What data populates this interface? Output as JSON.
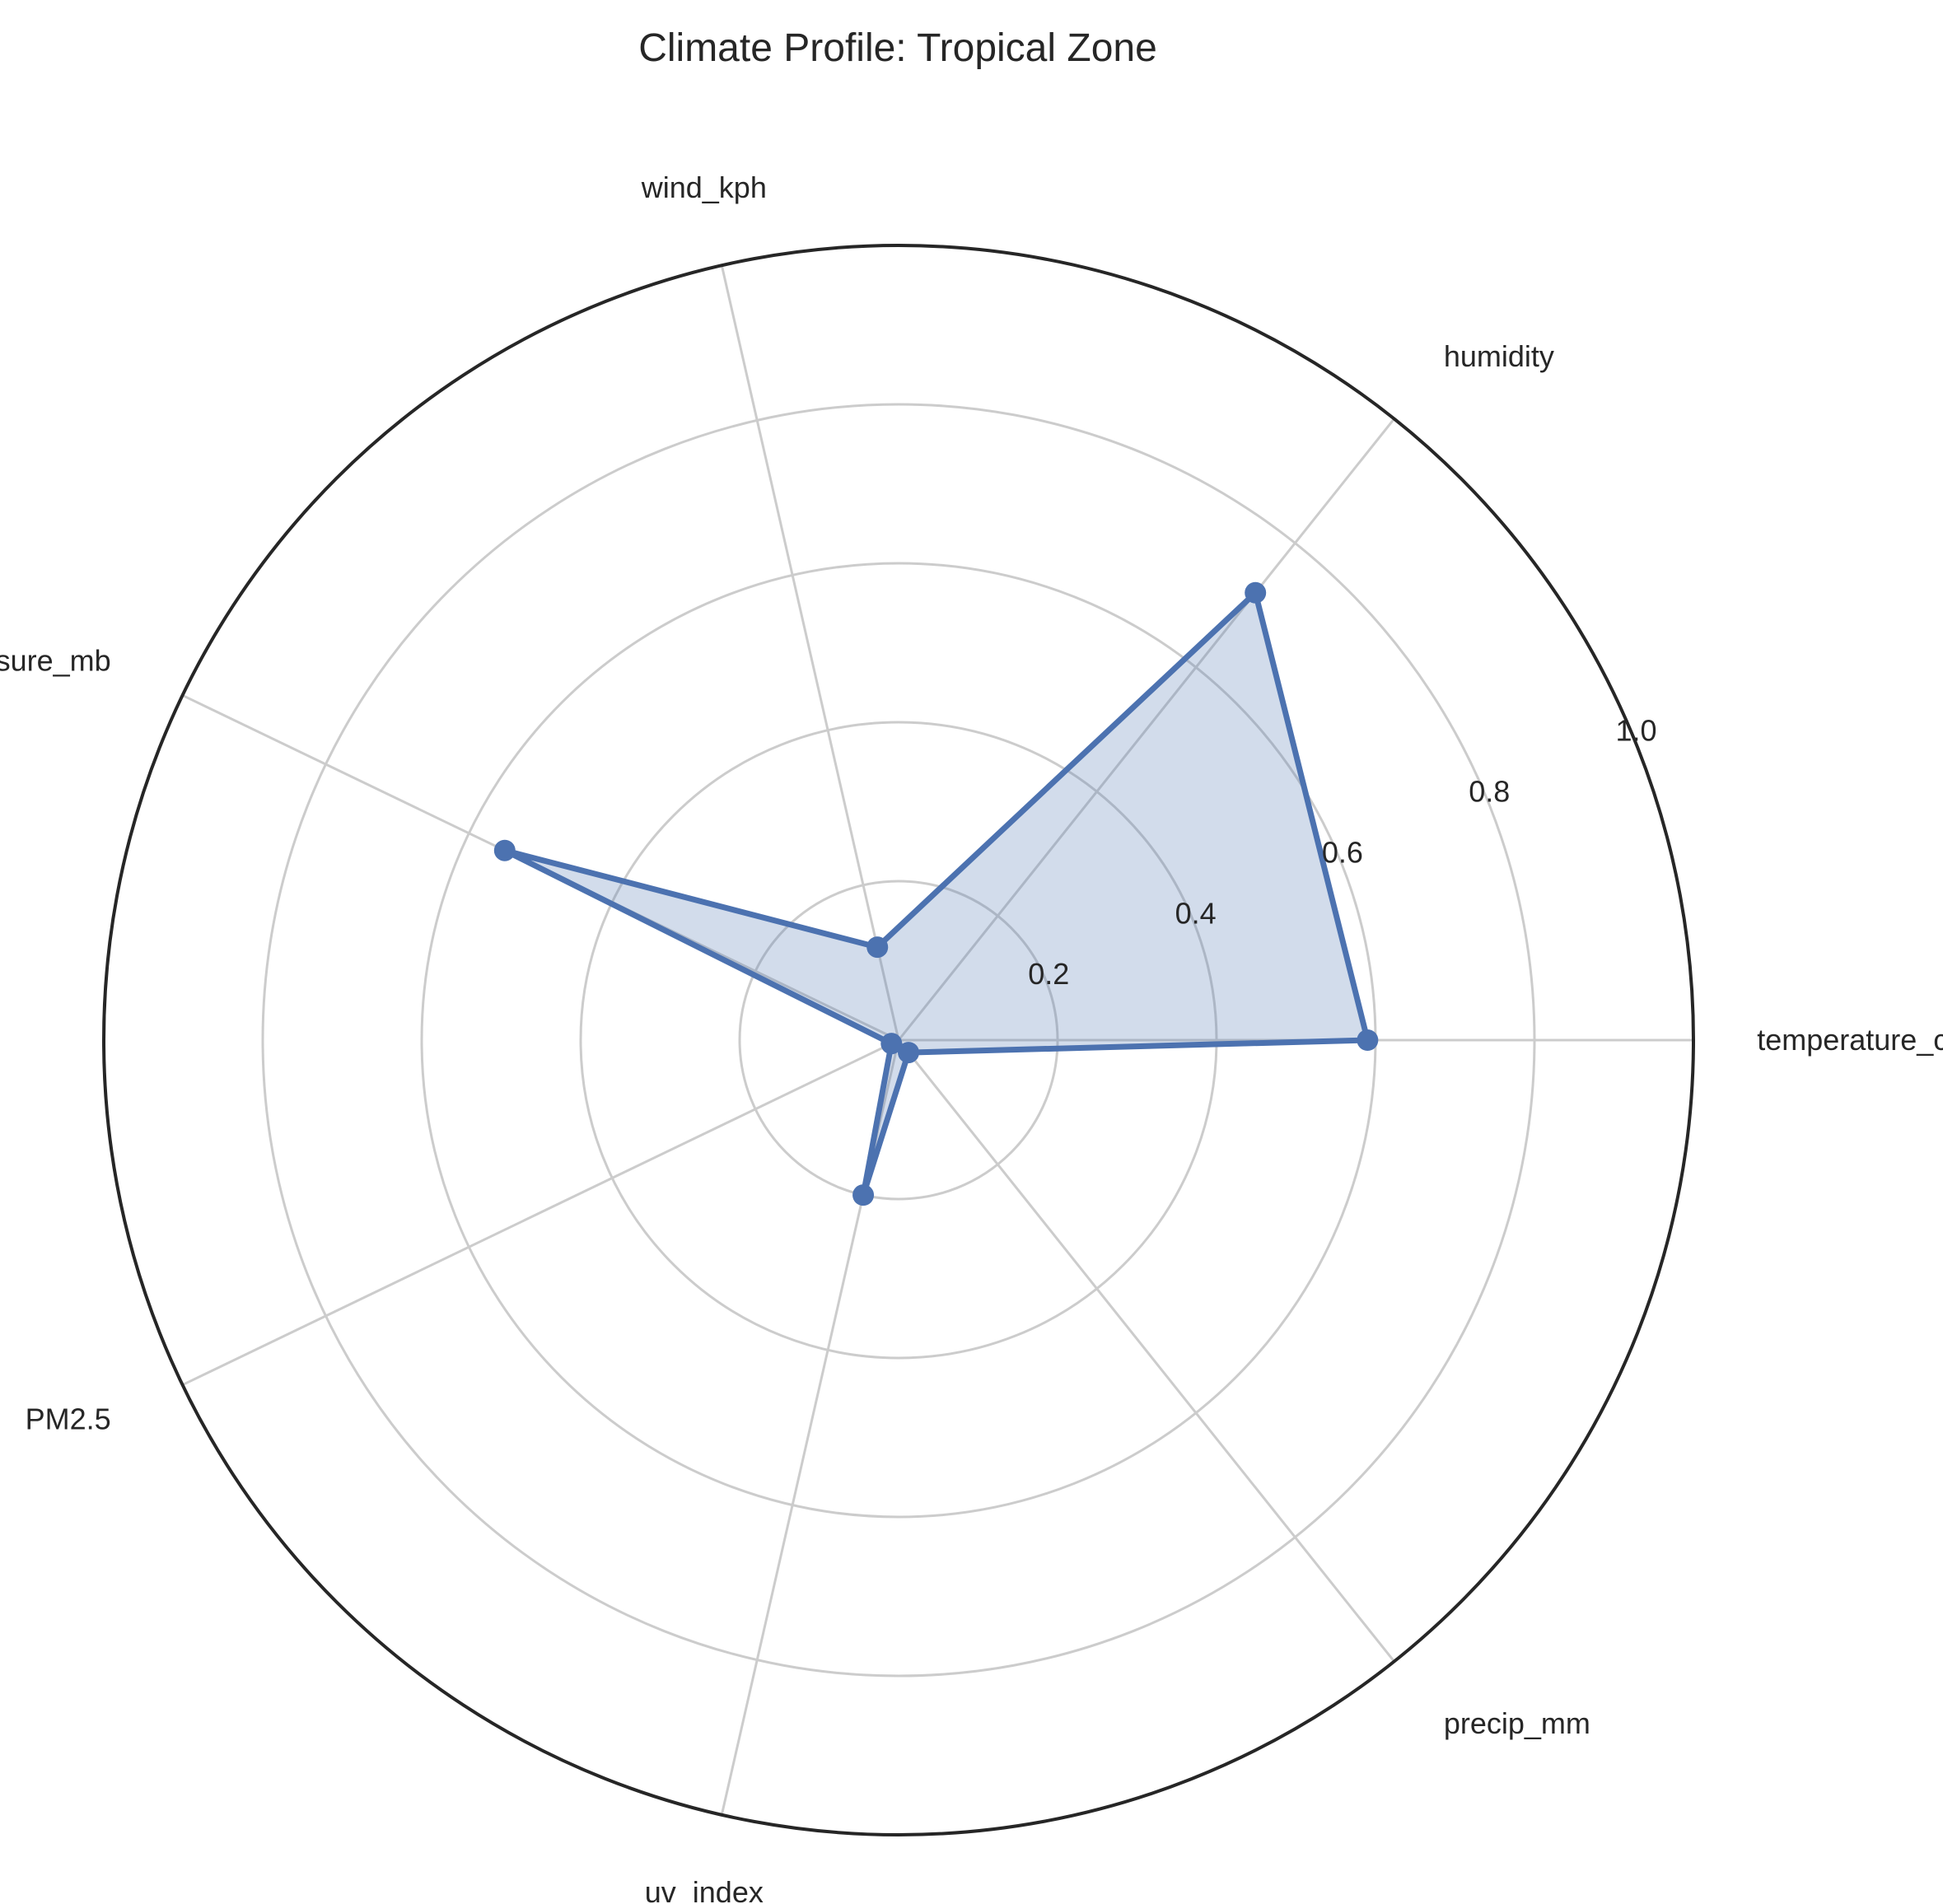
{
  "chart_data": {
    "type": "radar",
    "title": "Climate Profile: Tropical Zone",
    "categories": [
      "temperature_celsius",
      "humidity",
      "wind_kph",
      "pressure_mb",
      "PM2.5",
      "uv_index",
      "precip_mm"
    ],
    "series": [
      {
        "values": [
          0.59,
          0.72,
          0.12,
          0.55,
          0.01,
          0.2,
          0.02
        ]
      }
    ],
    "rlim": [
      0,
      1.0
    ],
    "r_ticks": [
      "0.2",
      "0.4",
      "0.6",
      "0.8",
      "1.0"
    ],
    "grid": true,
    "colors": {
      "line": "#4c72b0",
      "fill": "#4c72b0",
      "grid": "#cccccc",
      "frame": "#262626"
    }
  }
}
